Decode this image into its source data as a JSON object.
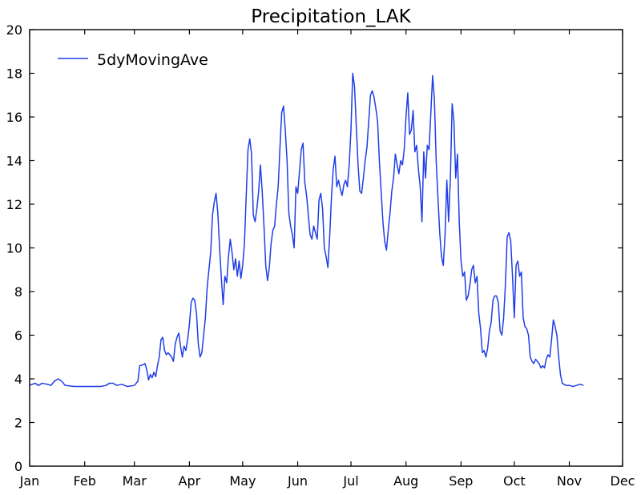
{
  "chart_data": {
    "type": "line",
    "title": "Precipitation_LAK",
    "xlabel": "",
    "ylabel": "",
    "ylim": [
      0,
      20
    ],
    "yticks": [
      0,
      2,
      4,
      6,
      8,
      10,
      12,
      14,
      16,
      18,
      20
    ],
    "x_tick_labels": [
      "Jan",
      "Feb",
      "Mar",
      "Apr",
      "May",
      "Jun",
      "Jul",
      "Aug",
      "Sep",
      "Oct",
      "Nov",
      "Dec"
    ],
    "x_tick_days": [
      0,
      31,
      59,
      90,
      120,
      151,
      181,
      212,
      243,
      273,
      304,
      334
    ],
    "xlim_days": [
      0,
      334
    ],
    "grid": false,
    "legend_position": "top-left",
    "series": [
      {
        "name": "5dyMovingAve",
        "color": "#1f3ee8",
        "points": [
          [
            0,
            3.7
          ],
          [
            3,
            3.8
          ],
          [
            5,
            3.7
          ],
          [
            7,
            3.8
          ],
          [
            10,
            3.75
          ],
          [
            12,
            3.7
          ],
          [
            14,
            3.9
          ],
          [
            16,
            4.0
          ],
          [
            18,
            3.9
          ],
          [
            20,
            3.7
          ],
          [
            25,
            3.65
          ],
          [
            30,
            3.65
          ],
          [
            35,
            3.65
          ],
          [
            40,
            3.65
          ],
          [
            43,
            3.7
          ],
          [
            45,
            3.8
          ],
          [
            47,
            3.8
          ],
          [
            49,
            3.7
          ],
          [
            52,
            3.75
          ],
          [
            55,
            3.65
          ],
          [
            59,
            3.7
          ],
          [
            61,
            3.9
          ],
          [
            62,
            4.6
          ],
          [
            64,
            4.65
          ],
          [
            65,
            4.7
          ],
          [
            66,
            4.4
          ],
          [
            67,
            3.95
          ],
          [
            68,
            4.2
          ],
          [
            69,
            4.05
          ],
          [
            70,
            4.3
          ],
          [
            71,
            4.1
          ],
          [
            72,
            4.6
          ],
          [
            73,
            5.0
          ],
          [
            74,
            5.8
          ],
          [
            75,
            5.9
          ],
          [
            76,
            5.3
          ],
          [
            77,
            5.1
          ],
          [
            78,
            5.2
          ],
          [
            79,
            5.1
          ],
          [
            80,
            5.0
          ],
          [
            81,
            4.8
          ],
          [
            82,
            5.6
          ],
          [
            83,
            5.9
          ],
          [
            84,
            6.1
          ],
          [
            85,
            5.5
          ],
          [
            86,
            5.0
          ],
          [
            87,
            5.5
          ],
          [
            88,
            5.3
          ],
          [
            89,
            5.8
          ],
          [
            90,
            6.5
          ],
          [
            91,
            7.5
          ],
          [
            92,
            7.7
          ],
          [
            93,
            7.6
          ],
          [
            94,
            7.0
          ],
          [
            95,
            5.6
          ],
          [
            96,
            5.0
          ],
          [
            97,
            5.2
          ],
          [
            98,
            6.0
          ],
          [
            99,
            6.8
          ],
          [
            100,
            8.2
          ],
          [
            101,
            9.0
          ],
          [
            102,
            9.8
          ],
          [
            103,
            11.5
          ],
          [
            104,
            12.1
          ],
          [
            105,
            12.5
          ],
          [
            106,
            11.6
          ],
          [
            107,
            10.0
          ],
          [
            108,
            8.6
          ],
          [
            109,
            7.4
          ],
          [
            110,
            8.7
          ],
          [
            111,
            8.4
          ],
          [
            112,
            9.6
          ],
          [
            113,
            10.4
          ],
          [
            114,
            9.8
          ],
          [
            115,
            9.0
          ],
          [
            116,
            9.5
          ],
          [
            117,
            8.7
          ],
          [
            118,
            9.4
          ],
          [
            119,
            8.6
          ],
          [
            120,
            9.2
          ],
          [
            121,
            10.2
          ],
          [
            122,
            12.4
          ],
          [
            123,
            14.5
          ],
          [
            124,
            15.0
          ],
          [
            125,
            14.3
          ],
          [
            126,
            11.5
          ],
          [
            127,
            11.2
          ],
          [
            128,
            11.8
          ],
          [
            129,
            12.6
          ],
          [
            130,
            13.8
          ],
          [
            131,
            12.6
          ],
          [
            132,
            11.0
          ],
          [
            133,
            9.2
          ],
          [
            134,
            8.5
          ],
          [
            135,
            9.1
          ],
          [
            136,
            10.2
          ],
          [
            137,
            10.8
          ],
          [
            138,
            11.0
          ],
          [
            139,
            12.0
          ],
          [
            140,
            12.8
          ],
          [
            141,
            14.6
          ],
          [
            142,
            16.2
          ],
          [
            143,
            16.5
          ],
          [
            144,
            15.4
          ],
          [
            145,
            14.0
          ],
          [
            146,
            11.6
          ],
          [
            147,
            11.0
          ],
          [
            148,
            10.6
          ],
          [
            149,
            10.0
          ],
          [
            150,
            12.8
          ],
          [
            151,
            12.5
          ],
          [
            152,
            13.5
          ],
          [
            153,
            14.5
          ],
          [
            154,
            14.8
          ],
          [
            155,
            13.0
          ],
          [
            156,
            12.4
          ],
          [
            157,
            11.5
          ],
          [
            158,
            10.6
          ],
          [
            159,
            10.4
          ],
          [
            160,
            11.0
          ],
          [
            161,
            10.7
          ],
          [
            162,
            10.4
          ],
          [
            163,
            12.2
          ],
          [
            164,
            12.5
          ],
          [
            165,
            11.8
          ],
          [
            166,
            10.0
          ],
          [
            167,
            9.6
          ],
          [
            168,
            9.1
          ],
          [
            169,
            10.5
          ],
          [
            170,
            12.3
          ],
          [
            171,
            13.6
          ],
          [
            172,
            14.2
          ],
          [
            173,
            12.8
          ],
          [
            174,
            13.1
          ],
          [
            175,
            12.7
          ],
          [
            176,
            12.4
          ],
          [
            177,
            12.9
          ],
          [
            178,
            13.1
          ],
          [
            179,
            12.8
          ],
          [
            180,
            13.8
          ],
          [
            181,
            15.4
          ],
          [
            182,
            18.0
          ],
          [
            183,
            17.4
          ],
          [
            184,
            15.6
          ],
          [
            185,
            13.8
          ],
          [
            186,
            12.6
          ],
          [
            187,
            12.5
          ],
          [
            188,
            13.2
          ],
          [
            189,
            14.0
          ],
          [
            190,
            14.6
          ],
          [
            191,
            15.8
          ],
          [
            192,
            17.0
          ],
          [
            193,
            17.2
          ],
          [
            194,
            16.9
          ],
          [
            195,
            16.4
          ],
          [
            196,
            15.8
          ],
          [
            197,
            14.0
          ],
          [
            198,
            12.6
          ],
          [
            199,
            11.2
          ],
          [
            200,
            10.3
          ],
          [
            201,
            9.9
          ],
          [
            202,
            10.8
          ],
          [
            203,
            11.6
          ],
          [
            204,
            12.6
          ],
          [
            205,
            13.2
          ],
          [
            206,
            14.3
          ],
          [
            207,
            13.8
          ],
          [
            208,
            13.4
          ],
          [
            209,
            14.0
          ],
          [
            210,
            13.8
          ],
          [
            211,
            14.5
          ],
          [
            212,
            16.0
          ],
          [
            213,
            17.1
          ],
          [
            214,
            15.2
          ],
          [
            215,
            15.4
          ],
          [
            216,
            16.3
          ],
          [
            217,
            14.4
          ],
          [
            218,
            14.7
          ],
          [
            219,
            13.6
          ],
          [
            220,
            12.8
          ],
          [
            221,
            11.2
          ],
          [
            222,
            14.4
          ],
          [
            223,
            13.2
          ],
          [
            224,
            14.7
          ],
          [
            225,
            14.5
          ],
          [
            226,
            16.2
          ],
          [
            227,
            17.9
          ],
          [
            228,
            16.8
          ],
          [
            229,
            14.0
          ],
          [
            230,
            12.3
          ],
          [
            231,
            10.7
          ],
          [
            232,
            9.6
          ],
          [
            233,
            9.2
          ],
          [
            234,
            10.6
          ],
          [
            235,
            13.1
          ],
          [
            236,
            11.2
          ],
          [
            237,
            13.2
          ],
          [
            238,
            16.6
          ],
          [
            239,
            15.8
          ],
          [
            240,
            13.2
          ],
          [
            241,
            14.3
          ],
          [
            242,
            11.2
          ],
          [
            243,
            9.4
          ],
          [
            244,
            8.7
          ],
          [
            245,
            8.9
          ],
          [
            246,
            7.6
          ],
          [
            247,
            7.8
          ],
          [
            248,
            8.3
          ],
          [
            249,
            9.0
          ],
          [
            250,
            9.2
          ],
          [
            251,
            8.4
          ],
          [
            252,
            8.7
          ],
          [
            253,
            7.0
          ],
          [
            254,
            6.3
          ],
          [
            255,
            5.2
          ],
          [
            256,
            5.3
          ],
          [
            257,
            5.0
          ],
          [
            258,
            5.4
          ],
          [
            259,
            6.2
          ],
          [
            260,
            6.6
          ],
          [
            261,
            7.6
          ],
          [
            262,
            7.8
          ],
          [
            263,
            7.8
          ],
          [
            264,
            7.5
          ],
          [
            265,
            6.2
          ],
          [
            266,
            6.0
          ],
          [
            267,
            6.8
          ],
          [
            268,
            8.3
          ],
          [
            269,
            10.5
          ],
          [
            270,
            10.7
          ],
          [
            271,
            10.3
          ],
          [
            272,
            8.7
          ],
          [
            273,
            6.8
          ],
          [
            274,
            9.2
          ],
          [
            275,
            9.4
          ],
          [
            276,
            8.7
          ],
          [
            277,
            8.9
          ],
          [
            278,
            6.8
          ],
          [
            279,
            6.4
          ],
          [
            280,
            6.3
          ],
          [
            281,
            6.0
          ],
          [
            282,
            5.0
          ],
          [
            283,
            4.8
          ],
          [
            284,
            4.7
          ],
          [
            285,
            4.9
          ],
          [
            286,
            4.8
          ],
          [
            287,
            4.7
          ],
          [
            288,
            4.5
          ],
          [
            289,
            4.6
          ],
          [
            290,
            4.5
          ],
          [
            291,
            4.9
          ],
          [
            292,
            5.1
          ],
          [
            293,
            5.0
          ],
          [
            294,
            5.8
          ],
          [
            295,
            6.7
          ],
          [
            296,
            6.4
          ],
          [
            297,
            6.0
          ],
          [
            298,
            5.0
          ],
          [
            299,
            4.2
          ],
          [
            300,
            3.8
          ],
          [
            302,
            3.7
          ],
          [
            304,
            3.7
          ],
          [
            306,
            3.65
          ],
          [
            308,
            3.7
          ],
          [
            310,
            3.75
          ],
          [
            312,
            3.7
          ]
        ]
      }
    ]
  }
}
